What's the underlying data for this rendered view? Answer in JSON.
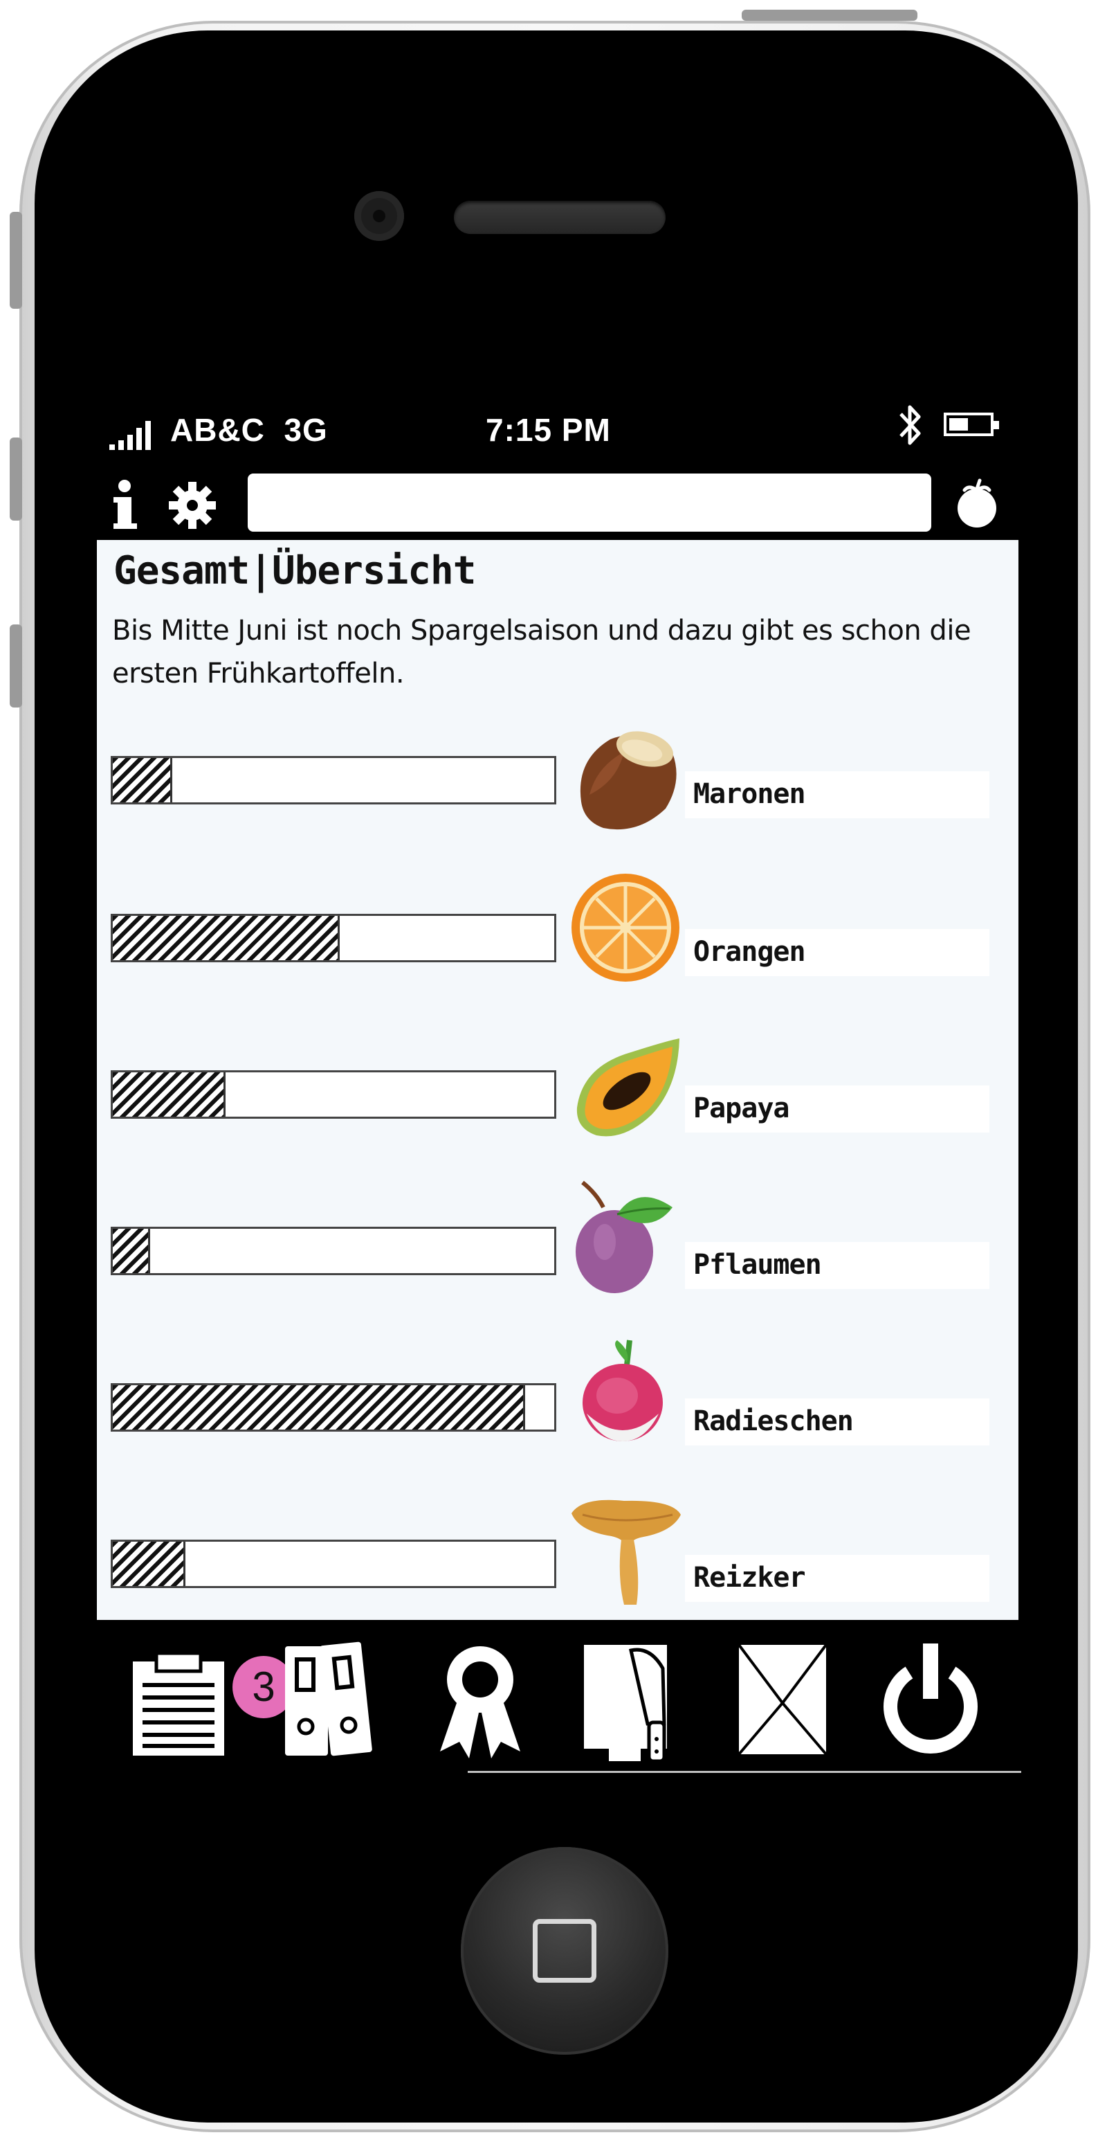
{
  "status_bar": {
    "carrier": "AB&C",
    "network": "3G",
    "time": "7:15 PM",
    "battery_level": 0.55
  },
  "toolbar": {
    "search_placeholder": ""
  },
  "page": {
    "title": "Gesamt|Übersicht",
    "intro": "Bis Mitte Juni ist noch Spargelsaison und dazu gibt es schon die ersten Frühkartoffeln."
  },
  "produce": [
    {
      "name": "Maronen",
      "level": 0.13,
      "icon": "chestnut-icon"
    },
    {
      "name": "Orangen",
      "level": 0.51,
      "icon": "orange-icon"
    },
    {
      "name": "Papaya",
      "level": 0.25,
      "icon": "papaya-icon"
    },
    {
      "name": "Pflaumen",
      "level": 0.08,
      "icon": "plum-icon"
    },
    {
      "name": "Radieschen",
      "level": 0.93,
      "icon": "radish-icon"
    },
    {
      "name": "Reizker",
      "level": 0.16,
      "icon": "mushroom-icon"
    }
  ],
  "tabbar": {
    "notification_count": "3"
  },
  "colors": {
    "screen_bg": "#f4f8fb",
    "badge": "#e56fb9",
    "bar_border": "#444444"
  }
}
